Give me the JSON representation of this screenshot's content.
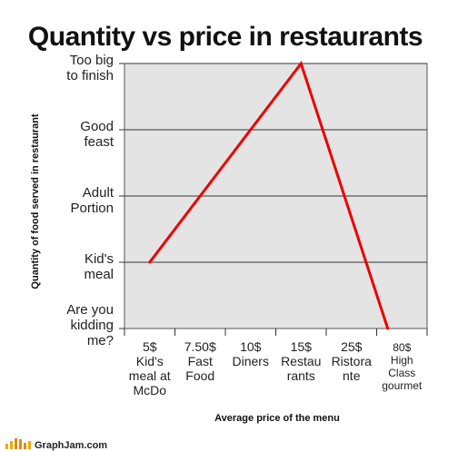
{
  "chart_data": {
    "type": "line",
    "title": "Quantity vs price in restaurants",
    "xlabel": "Average price of the menu",
    "ylabel": "Quantity of food served in restaurant",
    "categories": [
      [
        "5$",
        "Kid's",
        "meal at",
        "McDo"
      ],
      [
        "7.50$",
        "Fast",
        "Food"
      ],
      [
        "10$",
        "Diners"
      ],
      [
        "15$",
        "Restau",
        "rants"
      ],
      [
        "25$",
        "Ristora",
        "nte"
      ],
      [
        "80$",
        "High",
        "Class",
        "gourmet"
      ]
    ],
    "y_levels": [
      [
        "Are you",
        "kidding",
        "me?"
      ],
      [
        "Kid's",
        "meal"
      ],
      [
        "Adult",
        "Portion"
      ],
      [
        "Good",
        "feast"
      ],
      [
        "Too big",
        "to finish"
      ]
    ],
    "ylim": [
      0,
      4
    ],
    "grid": true,
    "series": [
      {
        "color": "#ee0000",
        "points": [
          {
            "x": 0,
            "y": 1
          },
          {
            "x": 3,
            "y": 4
          },
          {
            "x": 4.72,
            "y": 0
          }
        ]
      }
    ]
  },
  "footer": {
    "brand": "GraphJam.com"
  }
}
